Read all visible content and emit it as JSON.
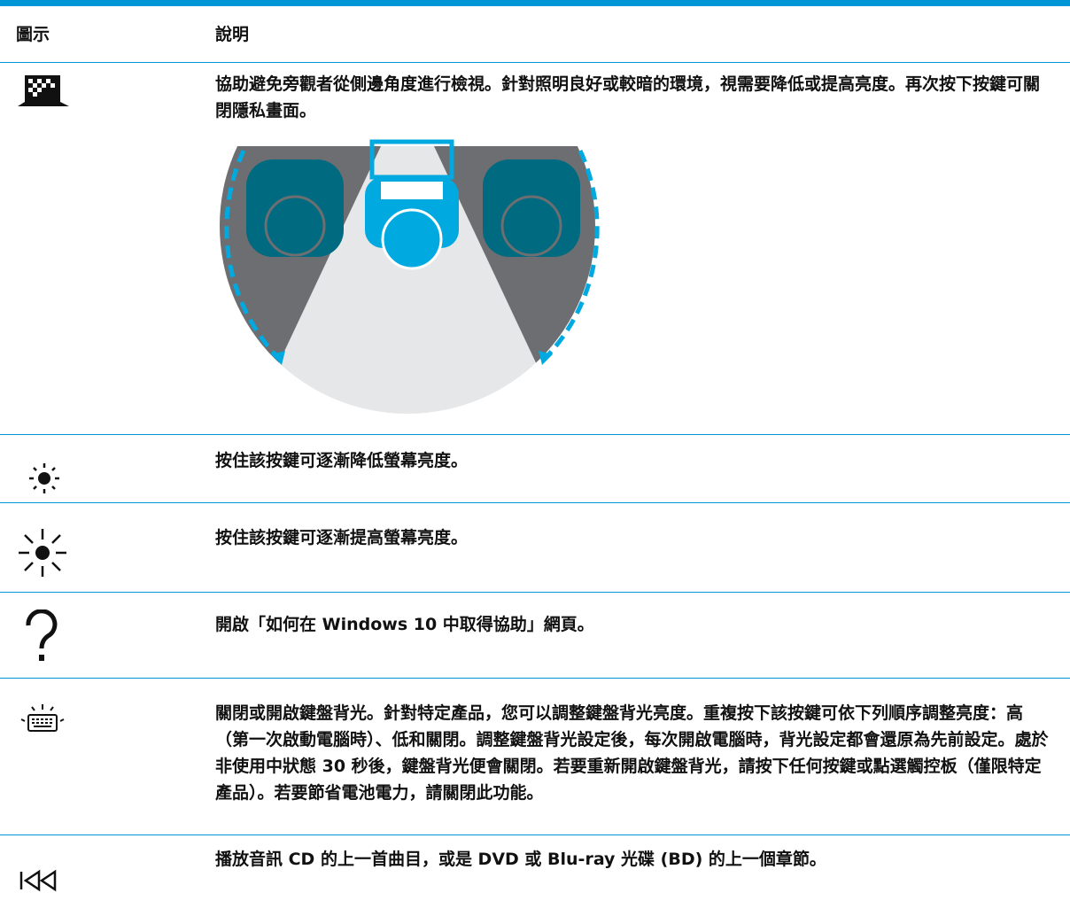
{
  "header": {
    "icon": "圖示",
    "description": "說明"
  },
  "rows": [
    {
      "description": "協助避免旁觀者從側邊角度進行檢視。針對照明良好或較暗的環境，視需要降低或提高亮度。再次按下按鍵可關閉隱私畫面。"
    },
    {
      "description": "按住該按鍵可逐漸降低螢幕亮度。"
    },
    {
      "description": "按住該按鍵可逐漸提高螢幕亮度。"
    },
    {
      "description": "開啟「如何在 Windows 10 中取得協助」網頁。"
    },
    {
      "description": "關閉或開啟鍵盤背光。針對特定產品，您可以調整鍵盤背光亮度。重複按下該按鍵可依下列順序調整亮度：高（第一次啟動電腦時）、低和關閉。調整鍵盤背光設定後，每次開啟電腦時，背光設定都會還原為先前設定。處於非使用中狀態 30 秒後，鍵盤背光便會關閉。若要重新開啟鍵盤背光，請按下任何按鍵或點選觸控板（僅限特定產品）。若要節省電池電力，請關閉此功能。"
    },
    {
      "description": "播放音訊 CD 的上一首曲目，或是 DVD 或 Blu-ray 光碟 (BD) 的上一個章節。"
    }
  ]
}
